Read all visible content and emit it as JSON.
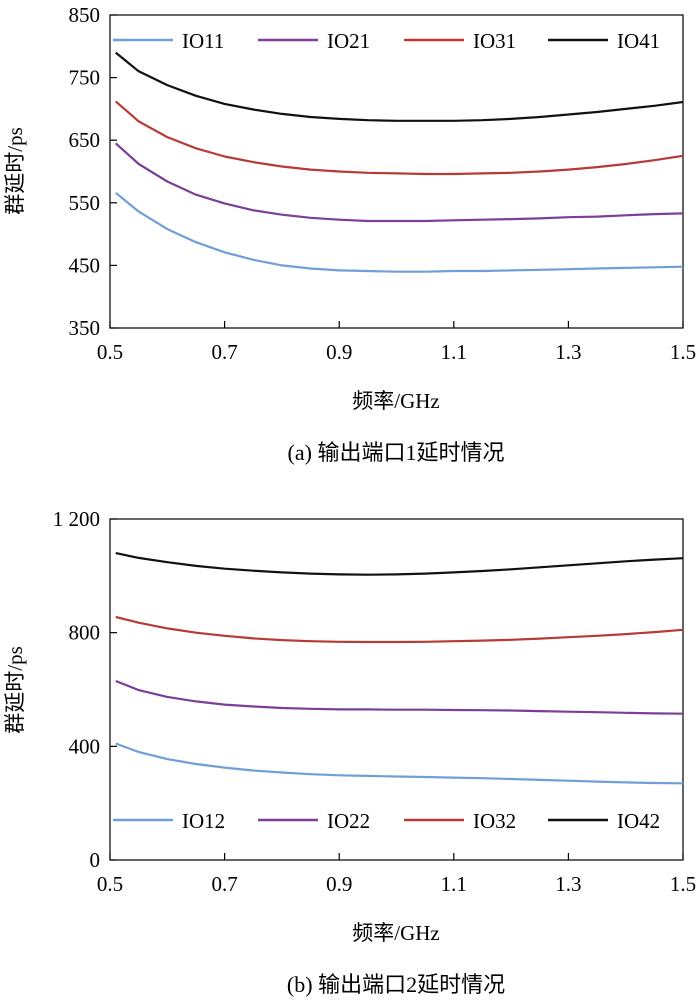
{
  "chart_data": [
    {
      "type": "line",
      "caption": "(a) 输出端口1延时情况",
      "xlabel": "频率/GHz",
      "ylabel": "群延时/ps",
      "xlim": [
        0.5,
        1.5
      ],
      "ylim": [
        350,
        850
      ],
      "xticks": [
        "0.5",
        "0.7",
        "0.9",
        "1.1",
        "1.3",
        "1.5"
      ],
      "yticks": [
        "350",
        "450",
        "550",
        "650",
        "750",
        "850"
      ],
      "legend_position": "top",
      "x": [
        0.51,
        0.55,
        0.6,
        0.65,
        0.7,
        0.75,
        0.8,
        0.85,
        0.9,
        0.95,
        1.0,
        1.05,
        1.1,
        1.15,
        1.2,
        1.25,
        1.3,
        1.35,
        1.4,
        1.45,
        1.5
      ],
      "series": [
        {
          "name": "IO11",
          "color": "#6f9fd6",
          "values": [
            566,
            536,
            508,
            487,
            471,
            459,
            450,
            445,
            442,
            441,
            440,
            440,
            441,
            441,
            442,
            443,
            444,
            445,
            446,
            447,
            448
          ]
        },
        {
          "name": "IO21",
          "color": "#7b3f97",
          "values": [
            645,
            612,
            584,
            563,
            549,
            538,
            531,
            526,
            523,
            521,
            521,
            521,
            522,
            523,
            524,
            525,
            527,
            528,
            530,
            532,
            533
          ]
        },
        {
          "name": "IO31",
          "color": "#b83a35",
          "values": [
            712,
            680,
            655,
            637,
            624,
            615,
            608,
            603,
            600,
            598,
            597,
            596,
            596,
            597,
            598,
            600,
            603,
            607,
            612,
            618,
            625
          ]
        },
        {
          "name": "IO41",
          "color": "#111111",
          "values": [
            790,
            760,
            738,
            721,
            708,
            699,
            692,
            687,
            684,
            682,
            681,
            681,
            681,
            682,
            684,
            687,
            691,
            695,
            700,
            705,
            711
          ]
        }
      ]
    },
    {
      "type": "line",
      "caption": "(b) 输出端口2延时情况",
      "xlabel": "频率/GHz",
      "ylabel": "群延时/ps",
      "xlim": [
        0.5,
        1.5
      ],
      "ylim": [
        0,
        1200
      ],
      "xticks": [
        "0.5",
        "0.7",
        "0.9",
        "1.1",
        "1.3",
        "1.5"
      ],
      "yticks": [
        "0",
        "400",
        "800",
        "1 200"
      ],
      "legend_position": "bottom",
      "x": [
        0.51,
        0.55,
        0.6,
        0.65,
        0.7,
        0.75,
        0.8,
        0.85,
        0.9,
        0.95,
        1.0,
        1.05,
        1.1,
        1.15,
        1.2,
        1.25,
        1.3,
        1.35,
        1.4,
        1.45,
        1.5
      ],
      "series": [
        {
          "name": "IO12",
          "color": "#6f9fd6",
          "values": [
            410,
            380,
            355,
            338,
            325,
            315,
            308,
            302,
            298,
            296,
            294,
            292,
            290,
            288,
            285,
            282,
            279,
            276,
            273,
            271,
            270
          ]
        },
        {
          "name": "IO22",
          "color": "#7b3f97",
          "values": [
            630,
            598,
            574,
            558,
            547,
            540,
            535,
            532,
            530,
            530,
            529,
            529,
            528,
            527,
            526,
            524,
            522,
            520,
            518,
            516,
            515
          ]
        },
        {
          "name": "IO32",
          "color": "#b83a35",
          "values": [
            855,
            835,
            815,
            800,
            789,
            780,
            774,
            770,
            768,
            767,
            767,
            768,
            770,
            772,
            775,
            779,
            784,
            789,
            795,
            802,
            810
          ]
        },
        {
          "name": "IO42",
          "color": "#111111",
          "values": [
            1080,
            1063,
            1048,
            1035,
            1025,
            1018,
            1012,
            1008,
            1005,
            1004,
            1005,
            1008,
            1012,
            1017,
            1023,
            1030,
            1037,
            1044,
            1051,
            1057,
            1062
          ]
        }
      ]
    }
  ]
}
